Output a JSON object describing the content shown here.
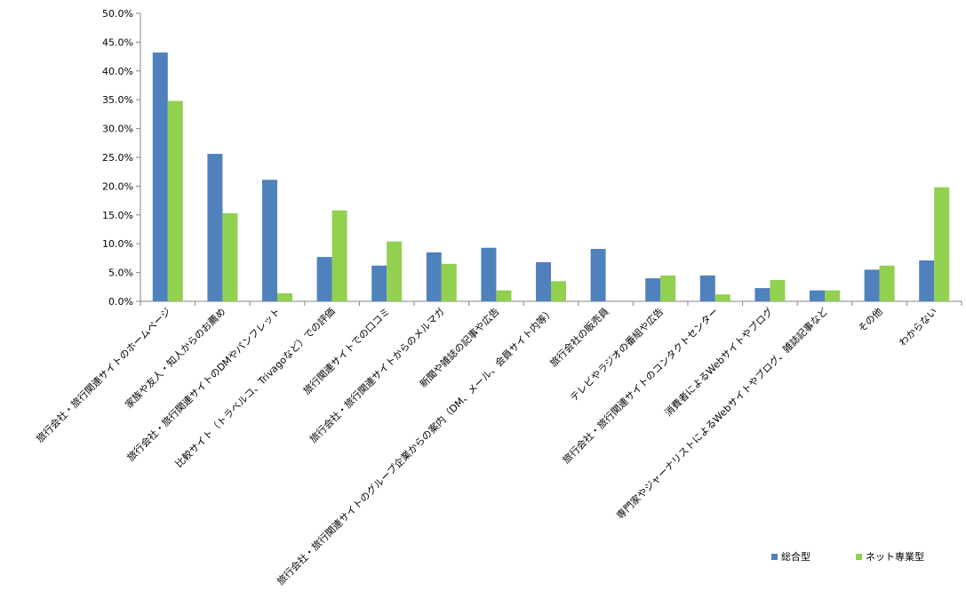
{
  "chart_data": {
    "type": "bar",
    "title": "",
    "xlabel": "",
    "ylabel": "",
    "ylim": [
      0,
      50
    ],
    "yticks": [
      "0.0%",
      "5.0%",
      "10.0%",
      "15.0%",
      "20.0%",
      "25.0%",
      "30.0%",
      "35.0%",
      "40.0%",
      "45.0%",
      "50.0%"
    ],
    "categories": [
      "旅行会社・旅行関連サイトのホームページ",
      "家族や友人・知人からのお薦め",
      "旅行会社・旅行関連サイトのDMやパンフレット",
      "比較サイト（トラベルコ、Trivagoなど）での評価",
      "旅行関連サイトでの口コミ",
      "旅行会社・旅行関連サイトからのメルマガ",
      "新聞や雑誌の記事や広告",
      "旅行会社・旅行関連サイトのグループ企業からの案内（DM、メール、会員サイト内等）",
      "旅行会社の販売員",
      "テレビやラジオの番組や広告",
      "旅行会社・旅行関連サイトのコンタクトセンター",
      "消費者によるWebサイトやブログ",
      "専門家やジャーナリストによるWebサイトやブログ、雑誌記事など",
      "その他",
      "わからない"
    ],
    "series": [
      {
        "name": "総合型",
        "color": "#4f81bd",
        "values": [
          43.2,
          25.6,
          21.1,
          7.7,
          6.2,
          8.5,
          9.3,
          6.8,
          9.1,
          4.0,
          4.5,
          2.3,
          1.9,
          5.5,
          7.1
        ]
      },
      {
        "name": "ネット専業型",
        "color": "#92d050",
        "values": [
          34.8,
          15.3,
          1.4,
          15.8,
          10.4,
          6.5,
          1.9,
          3.5,
          0.0,
          4.5,
          1.2,
          3.7,
          1.9,
          6.2,
          19.8
        ]
      }
    ],
    "legend_position": "bottom-right",
    "grid": false
  }
}
